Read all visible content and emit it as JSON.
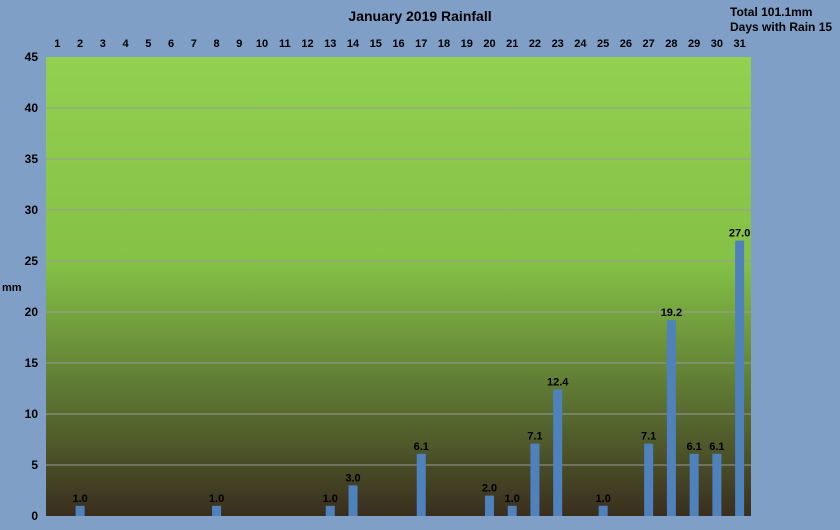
{
  "chart_data": {
    "type": "bar",
    "title": "January 2019 Rainfall",
    "ylabel": "mm",
    "xlabel": "",
    "total_label": "Total 101.1mm",
    "days_label": "Days with Rain 15",
    "categories": [
      "1",
      "2",
      "3",
      "4",
      "5",
      "6",
      "7",
      "8",
      "9",
      "10",
      "11",
      "12",
      "13",
      "14",
      "15",
      "16",
      "17",
      "18",
      "19",
      "20",
      "21",
      "22",
      "23",
      "24",
      "25",
      "26",
      "27",
      "28",
      "29",
      "30",
      "31"
    ],
    "values": [
      0,
      1.0,
      0,
      0,
      0,
      0,
      0,
      1.0,
      0,
      0,
      0,
      0,
      1.0,
      3.0,
      0,
      0,
      6.1,
      0,
      0,
      2.0,
      1.0,
      7.1,
      12.4,
      0,
      1.0,
      0,
      7.1,
      19.2,
      6.1,
      6.1,
      27.0
    ],
    "ylim": [
      0,
      45
    ],
    "yticks": [
      "0",
      "5",
      "10",
      "15",
      "20",
      "25",
      "30",
      "35",
      "40",
      "45"
    ],
    "x_axis_position": "top",
    "grid": true,
    "colors": {
      "bar": "#4f81bd",
      "background": "#7f9fc6",
      "plot_top": "#92d050",
      "plot_bottom": "#3a2e1e"
    }
  }
}
